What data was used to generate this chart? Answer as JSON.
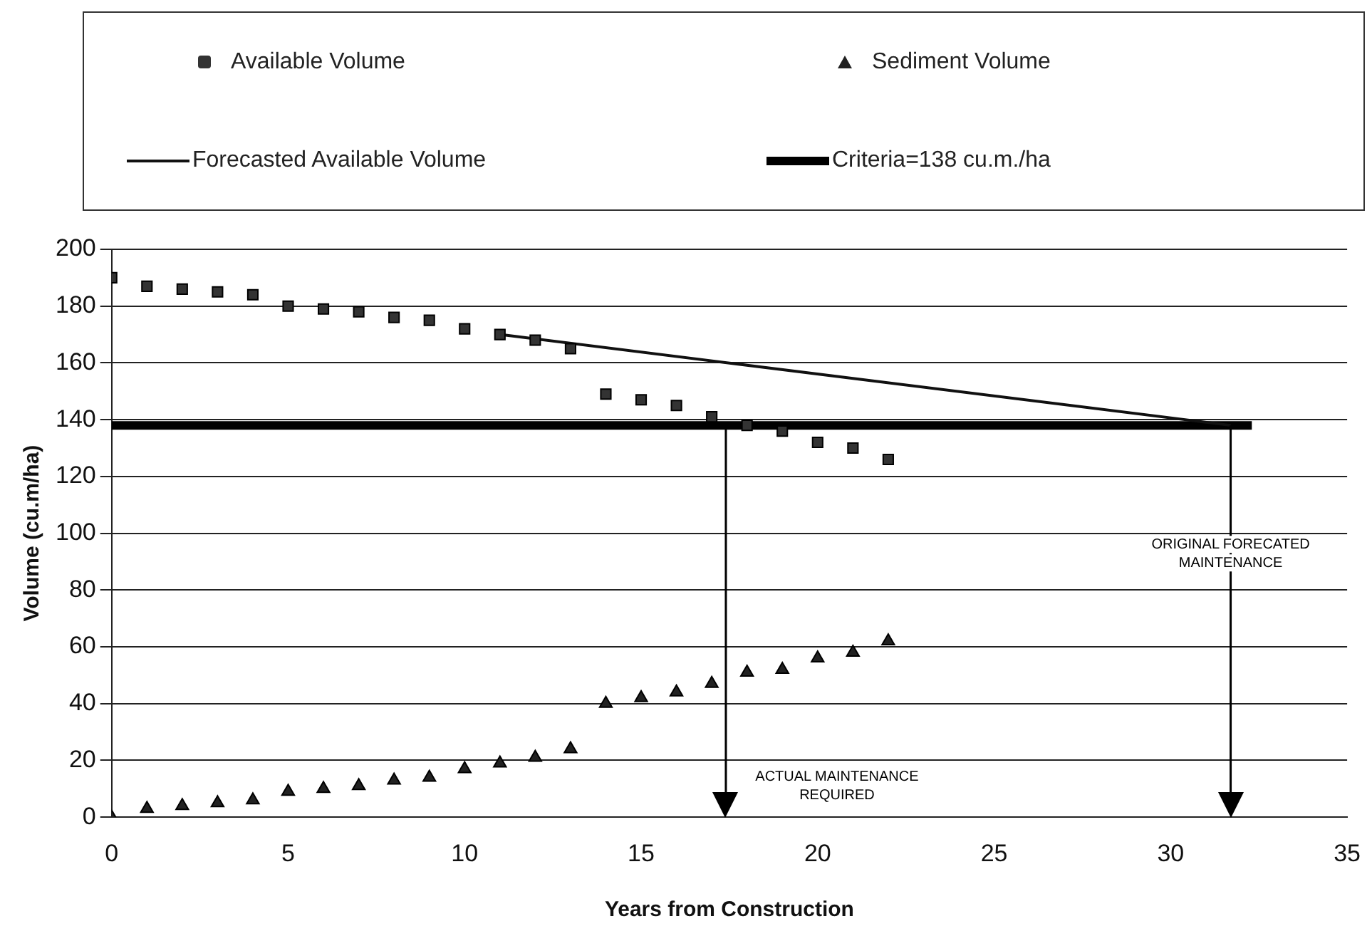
{
  "chart_data": {
    "type": "scatter",
    "xlabel": "Years from Construction",
    "ylabel": "Volume (cu.m/ha)",
    "xlim": [
      0,
      35
    ],
    "xticks": [
      0,
      5,
      10,
      15,
      20,
      25,
      30,
      35
    ],
    "ylim": [
      0,
      200
    ],
    "yticks": [
      0,
      20,
      40,
      60,
      80,
      100,
      120,
      140,
      160,
      180,
      200
    ],
    "grid": "y",
    "legend": "top",
    "series": [
      {
        "name": "Available Volume",
        "marker": "square",
        "color": "#333333",
        "x": [
          0,
          1,
          2,
          3,
          4,
          5,
          6,
          7,
          8,
          9,
          10,
          11,
          12,
          13,
          14,
          15,
          16,
          17,
          18,
          19,
          20,
          21,
          22
        ],
        "values": [
          190,
          187,
          186,
          185,
          184,
          180,
          179,
          178,
          176,
          175,
          172,
          170,
          168,
          165,
          149,
          147,
          145,
          141,
          138,
          136,
          132,
          130,
          126
        ]
      },
      {
        "name": "Sediment  Volume",
        "marker": "triangle",
        "color": "#222222",
        "x": [
          0,
          1,
          2,
          3,
          4,
          5,
          6,
          7,
          8,
          9,
          10,
          11,
          12,
          13,
          14,
          15,
          16,
          17,
          18,
          19,
          20,
          21,
          22
        ],
        "values": [
          0,
          3,
          4,
          5,
          6,
          9,
          10,
          11,
          13,
          14,
          17,
          19,
          21,
          24,
          40,
          42,
          44,
          47,
          51,
          52,
          56,
          58,
          62
        ]
      },
      {
        "name": "Forecasted Available Volume",
        "type": "line",
        "marker": "none",
        "color": "#111111",
        "x": [
          11,
          31.7
        ],
        "values": [
          170,
          138
        ]
      },
      {
        "name": "Criteria=138 cu.m./ha",
        "type": "line",
        "marker": "none",
        "color": "#000000",
        "x": [
          0,
          32.3
        ],
        "values": [
          138,
          138
        ]
      }
    ],
    "ref_lines": [
      {
        "axis": "x",
        "value": 17.4,
        "label": null
      },
      {
        "axis": "x",
        "value": 31.7,
        "label": null
      }
    ],
    "annotations": [
      "ACTUAL MAINTENANCE REQUIRED",
      "ORIGINAL FORECATED MAINTENANCE"
    ]
  }
}
